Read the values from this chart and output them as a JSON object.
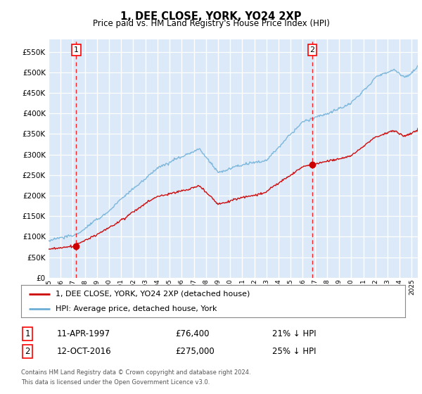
{
  "title": "1, DEE CLOSE, YORK, YO24 2XP",
  "subtitle": "Price paid vs. HM Land Registry's House Price Index (HPI)",
  "ylim": [
    0,
    580000
  ],
  "yticks": [
    0,
    50000,
    100000,
    150000,
    200000,
    250000,
    300000,
    350000,
    400000,
    450000,
    500000,
    550000
  ],
  "bg_color": "#dce9f8",
  "sale1_date": 1997.28,
  "sale1_price": 76400,
  "sale2_date": 2016.79,
  "sale2_price": 275000,
  "legend_line1": "1, DEE CLOSE, YORK, YO24 2XP (detached house)",
  "legend_line2": "HPI: Average price, detached house, York",
  "footer1": "Contains HM Land Registry data © Crown copyright and database right 2024.",
  "footer2": "This data is licensed under the Open Government Licence v3.0.",
  "table_row1_date": "11-APR-1997",
  "table_row1_price": "£76,400",
  "table_row1_hpi": "21% ↓ HPI",
  "table_row2_date": "12-OCT-2016",
  "table_row2_price": "£275,000",
  "table_row2_hpi": "25% ↓ HPI",
  "red_color": "#cc0000",
  "blue_color": "#6baed6",
  "xlim_start": 1995.0,
  "xlim_end": 2025.5
}
